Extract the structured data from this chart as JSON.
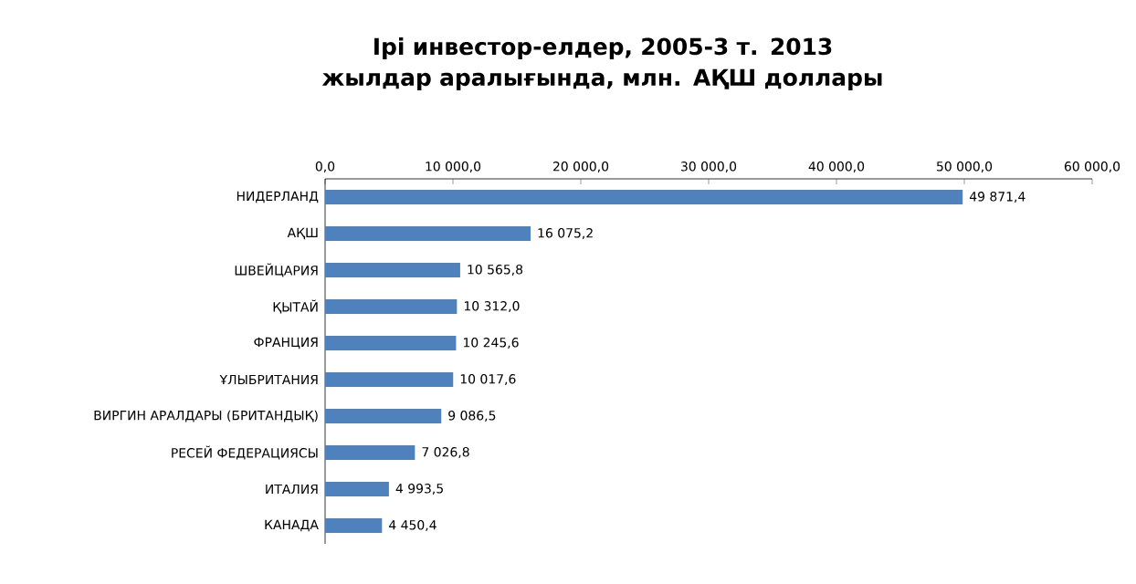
{
  "chart_data": {
    "type": "bar",
    "orientation": "horizontal",
    "title": "Ірі инвестор-елдер, 2005-3 т. 2013 жылдар аралығында, млн. АҚШ доллары",
    "categories": [
      "НИДЕРЛАНД",
      "АҚШ",
      "ШВЕЙЦАРИЯ",
      "ҚЫТАЙ",
      "ФРАНЦИЯ",
      "ҰЛЫБРИТАНИЯ",
      "ВИРГИН АРАЛДАРЫ (БРИТАНДЫҚ)",
      "РЕСЕЙ ФЕДЕРАЦИЯСЫ",
      "ИТАЛИЯ",
      "КАНАДА"
    ],
    "values": [
      49871.4,
      16075.2,
      10565.8,
      10312.0,
      10245.6,
      10017.6,
      9086.5,
      7026.8,
      4993.5,
      4450.4
    ],
    "value_labels": [
      "49 871,4",
      "16 075,2",
      "10 565,8",
      "10 312,0",
      "10 245,6",
      "10 017,6",
      "9 086,5",
      "7 026,8",
      "4 993,5",
      "4 450,4"
    ],
    "color": "#4f81bd",
    "xlim": [
      0,
      60000
    ],
    "xticks": [
      {
        "value": 0,
        "label": "0,0"
      },
      {
        "value": 10000,
        "label": "10 000,0"
      },
      {
        "value": 20000,
        "label": "20 000,0"
      },
      {
        "value": 30000,
        "label": "30 000,0"
      },
      {
        "value": 40000,
        "label": "40 000,0"
      },
      {
        "value": 50000,
        "label": "50 000,0"
      },
      {
        "value": 60000,
        "label": "60 000,0"
      }
    ],
    "grid": false
  }
}
